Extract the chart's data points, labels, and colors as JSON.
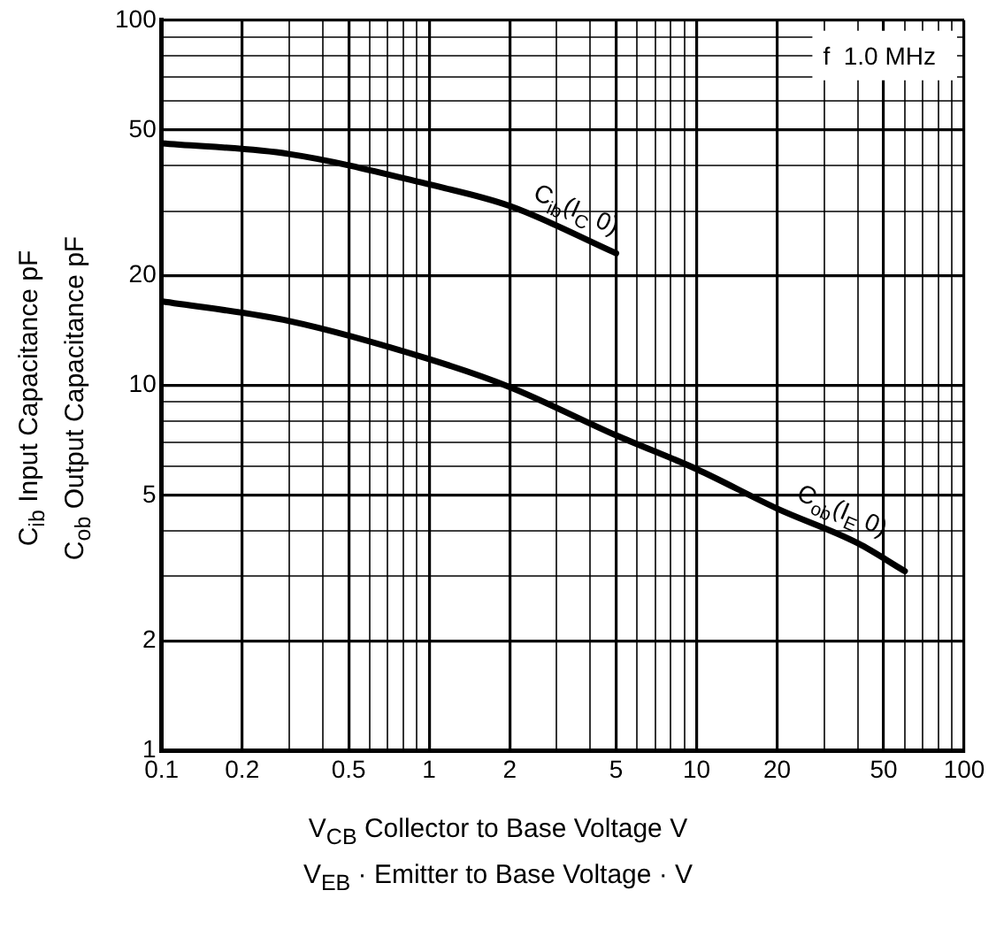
{
  "chart_data": {
    "type": "line",
    "xlabel": "V$_{CB}$  Collector to Base Voltage  V\nV$_{EB}$ · Emitter to Base Voltage · V",
    "ylabel": "C$_{ib}$  Input Capacitance  pF\nC$_{ob}$  Output Capacitance  pF",
    "log": "xy",
    "grid": true,
    "legend": false,
    "marker": "none",
    "line_style": "solid",
    "xlim": [
      0.1,
      100
    ],
    "ylim": [
      1,
      100
    ],
    "xticks": [
      0.1,
      0.2,
      {
        "value": 0.3,
        "label": null
      },
      {
        "value": 0.4,
        "label": null
      },
      0.5,
      {
        "value": 0.6,
        "label": null
      },
      {
        "value": 0.7,
        "label": null
      },
      {
        "value": 0.8,
        "label": null
      },
      {
        "value": 0.9,
        "label": null
      },
      1,
      2,
      {
        "value": 3,
        "label": null
      },
      {
        "value": 4,
        "label": null
      },
      5,
      {
        "value": 6,
        "label": null
      },
      {
        "value": 7,
        "label": null
      },
      {
        "value": 8,
        "label": null
      },
      {
        "value": 9,
        "label": null
      },
      10,
      20,
      {
        "value": 30,
        "label": null
      },
      {
        "value": 40,
        "label": null
      },
      50,
      {
        "value": 60,
        "label": null
      },
      {
        "value": 70,
        "label": null
      },
      {
        "value": 80,
        "label": null
      },
      {
        "value": 90,
        "label": null
      },
      100
    ],
    "yticks": [
      1,
      2,
      {
        "value": 3,
        "label": null
      },
      {
        "value": 4,
        "label": null
      },
      5,
      {
        "value": 6,
        "label": null
      },
      {
        "value": 7,
        "label": null
      },
      {
        "value": 8,
        "label": null
      },
      {
        "value": 9,
        "label": null
      },
      10,
      20,
      {
        "value": 30,
        "label": null
      },
      {
        "value": 40,
        "label": null
      },
      50,
      {
        "value": 60,
        "label": null
      },
      {
        "value": 70,
        "label": null
      },
      {
        "value": 80,
        "label": null
      },
      {
        "value": 90,
        "label": null
      },
      100
    ],
    "series": [
      {
        "name": "C$_{ib}$(I$_{C}$ 0)",
        "color": "#000000",
        "x": [
          0.1,
          0.3,
          1,
          2,
          5
        ],
        "values": [
          46,
          43,
          35.5,
          31,
          23
        ]
      },
      {
        "name": "C$_{ob}$(I$_{E}$ 0)",
        "color": "#000000",
        "x": [
          0.1,
          0.3,
          1,
          2,
          5,
          10,
          20,
          40,
          60
        ],
        "values": [
          17,
          15,
          11.8,
          9.9,
          7.3,
          5.9,
          4.6,
          3.7,
          3.1
        ]
      }
    ],
    "annotations": [
      "f  1.0 MHz"
    ]
  }
}
